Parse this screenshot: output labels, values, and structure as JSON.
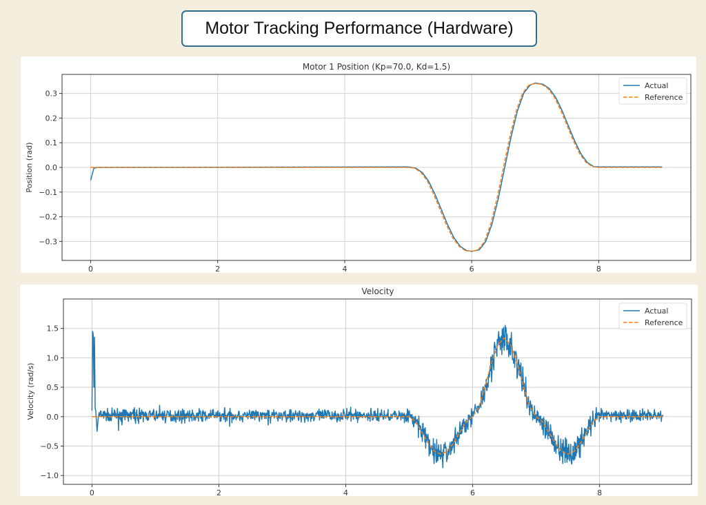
{
  "header": {
    "title": "Motor Tracking Performance (Hardware)"
  },
  "colors": {
    "actual": "#1f77b4",
    "reference": "#ff7f0e",
    "background": "#f4eedf",
    "title_border": "#2f6f8f"
  },
  "chart_data": [
    {
      "type": "line",
      "title": "Motor 1 Position (Kp=70.0, Kd=1.5)",
      "xlabel": "",
      "ylabel": "Position (rad)",
      "xlim": [
        -0.45,
        9.45
      ],
      "ylim": [
        -0.377,
        0.377
      ],
      "xticks": [
        "0",
        "2",
        "4",
        "6",
        "8"
      ],
      "yticks": [
        "−0.3",
        "−0.2",
        "−0.1",
        "0.0",
        "0.1",
        "0.2",
        "0.3"
      ],
      "grid": true,
      "legend": "top-right",
      "series": [
        {
          "name": "Actual",
          "style": "solid",
          "x": [
            0,
            0.05,
            0.1,
            5.0,
            5.12,
            5.22,
            5.32,
            5.42,
            5.52,
            5.62,
            5.72,
            5.82,
            5.92,
            6.0,
            6.12,
            6.22,
            6.32,
            6.42,
            6.52,
            6.62,
            6.72,
            6.82,
            6.92,
            7.0,
            7.12,
            7.22,
            7.32,
            7.42,
            7.52,
            7.62,
            7.72,
            7.82,
            7.92,
            8.0,
            9.0
          ],
          "y": [
            -0.052,
            -0.003,
            0,
            0.002,
            -0.003,
            -0.02,
            -0.055,
            -0.108,
            -0.17,
            -0.232,
            -0.285,
            -0.32,
            -0.337,
            -0.34,
            -0.334,
            -0.301,
            -0.229,
            -0.124,
            0,
            0.124,
            0.229,
            0.301,
            0.334,
            0.342,
            0.337,
            0.32,
            0.285,
            0.232,
            0.17,
            0.108,
            0.055,
            0.02,
            0.003,
            0.002,
            0.002
          ]
        },
        {
          "name": "Reference",
          "style": "dashed",
          "x": [
            0,
            5.0,
            5.1,
            5.2,
            5.3,
            5.4,
            5.5,
            5.6,
            5.7,
            5.8,
            5.9,
            6.0,
            6.1,
            6.2,
            6.3,
            6.4,
            6.5,
            6.6,
            6.7,
            6.8,
            6.9,
            7.0,
            7.1,
            7.2,
            7.3,
            7.4,
            7.5,
            7.6,
            7.7,
            7.8,
            7.9,
            8.0,
            9.0
          ],
          "y": [
            0,
            0,
            -0.003,
            -0.02,
            -0.055,
            -0.108,
            -0.17,
            -0.232,
            -0.285,
            -0.32,
            -0.337,
            -0.34,
            -0.334,
            -0.301,
            -0.229,
            -0.124,
            0,
            0.124,
            0.229,
            0.301,
            0.334,
            0.34,
            0.337,
            0.32,
            0.285,
            0.232,
            0.17,
            0.108,
            0.055,
            0.02,
            0.003,
            0,
            0
          ]
        }
      ]
    },
    {
      "type": "line",
      "title": "Velocity",
      "xlabel": "",
      "ylabel": "Velocity (rad/s)",
      "xlim": [
        -0.45,
        9.45
      ],
      "ylim": [
        -1.15,
        2.0
      ],
      "xticks": [
        "0",
        "2",
        "4",
        "6",
        "8"
      ],
      "yticks": [
        "−1.0",
        "−0.5",
        "0.0",
        "0.5",
        "1.0",
        "1.5"
      ],
      "grid": true,
      "legend": "top-right",
      "series": [
        {
          "name": "Actual",
          "style": "solid",
          "noisy": true,
          "x": [
            0,
            0.01,
            0.02,
            0.03,
            0.04,
            0.05,
            0.06,
            0.08,
            0.1,
            5.0,
            5.1,
            5.2,
            5.3,
            5.4,
            5.5,
            5.6,
            5.7,
            5.8,
            5.9,
            6.0,
            6.1,
            6.2,
            6.3,
            6.4,
            6.5,
            6.6,
            6.7,
            6.8,
            6.9,
            7.0,
            7.1,
            7.2,
            7.3,
            7.4,
            7.5,
            7.6,
            7.7,
            7.8,
            7.9,
            8.0,
            9.0
          ],
          "y": [
            0.1,
            1.45,
            1.4,
            0.5,
            1.35,
            0.15,
            0.1,
            -0.25,
            0.02,
            0.02,
            -0.083,
            -0.261,
            -0.45,
            -0.588,
            -0.64,
            -0.588,
            -0.45,
            -0.261,
            -0.083,
            0.02,
            0.17,
            0.53,
            0.92,
            1.2,
            1.32,
            1.2,
            0.92,
            0.53,
            0.17,
            0.0,
            -0.083,
            -0.261,
            -0.45,
            -0.588,
            -0.64,
            -0.588,
            -0.45,
            -0.261,
            -0.083,
            0.02,
            0.02
          ]
        },
        {
          "name": "Reference",
          "style": "dashed",
          "x": [
            0,
            5.0,
            5.1,
            5.2,
            5.3,
            5.4,
            5.5,
            5.6,
            5.7,
            5.8,
            5.9,
            6.0,
            6.1,
            6.2,
            6.3,
            6.4,
            6.5,
            6.6,
            6.7,
            6.8,
            6.9,
            7.0,
            7.1,
            7.2,
            7.3,
            7.4,
            7.5,
            7.6,
            7.7,
            7.8,
            7.9,
            8.0,
            9.0
          ],
          "y": [
            0,
            0,
            -0.083,
            -0.261,
            -0.45,
            -0.588,
            -0.638,
            -0.588,
            -0.45,
            -0.261,
            -0.083,
            0,
            0.17,
            0.53,
            0.92,
            1.22,
            1.34,
            1.22,
            0.92,
            0.53,
            0.17,
            0,
            -0.083,
            -0.261,
            -0.45,
            -0.588,
            -0.638,
            -0.588,
            -0.45,
            -0.261,
            -0.083,
            0,
            0
          ]
        }
      ]
    }
  ]
}
